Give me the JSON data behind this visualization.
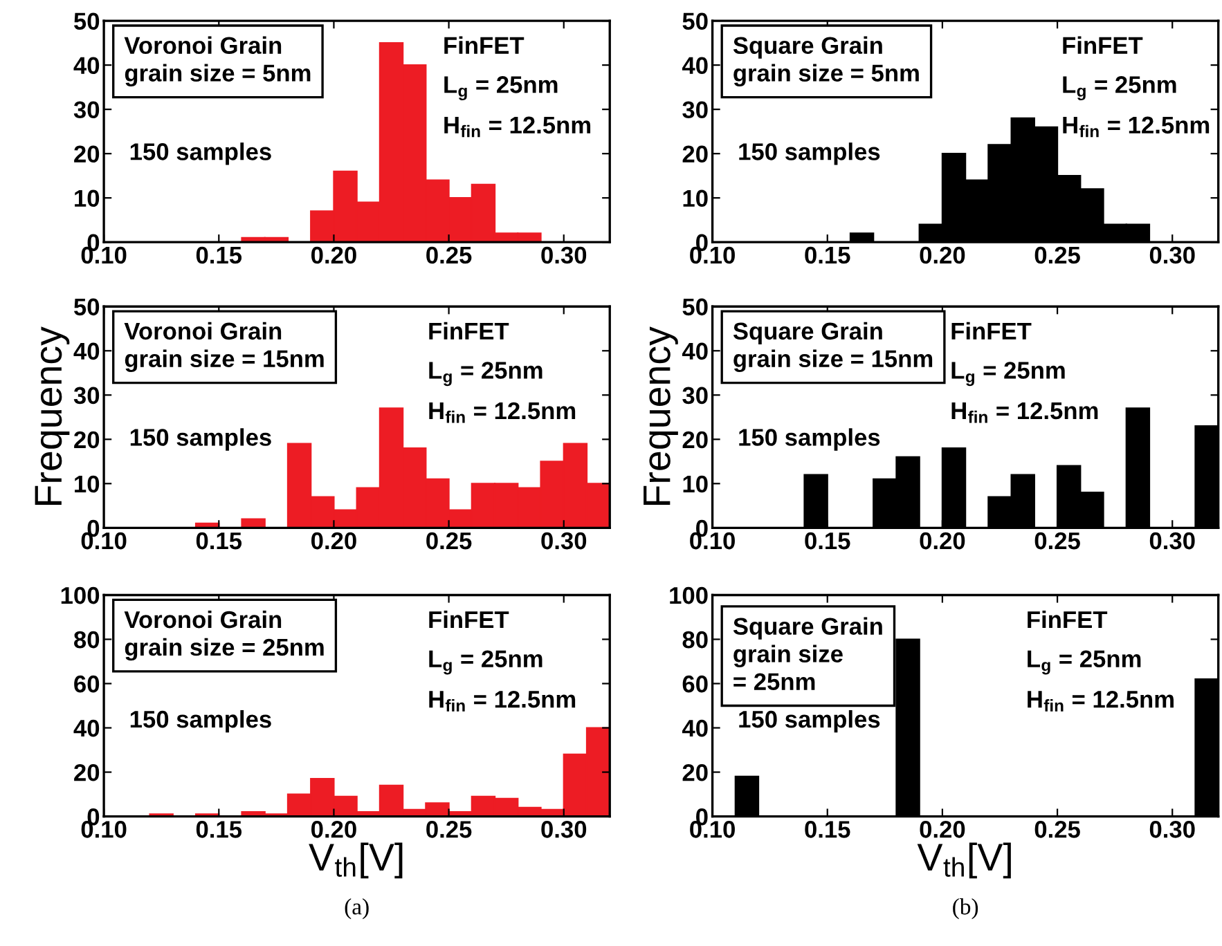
{
  "chart_data": [
    {
      "type": "histogram",
      "color": "#ed1c24",
      "bins": [
        0.1,
        0.11,
        0.12,
        0.13,
        0.14,
        0.15,
        0.16,
        0.17,
        0.18,
        0.19,
        0.2,
        0.21,
        0.22,
        0.23,
        0.24,
        0.25,
        0.26,
        0.27,
        0.28,
        0.29,
        0.3,
        0.31,
        0.32
      ],
      "values": [
        0,
        0,
        0,
        0,
        0,
        0,
        1,
        1,
        0,
        7,
        16,
        9,
        45,
        40,
        14,
        10,
        13,
        2,
        2,
        0,
        0,
        0
      ],
      "xlim": [
        0.1,
        0.32
      ],
      "xticks": [
        {
          "value": 0.1,
          "label": "0.10"
        },
        {
          "value": 0.15,
          "label": "0.15"
        },
        {
          "value": 0.2,
          "label": "0.20"
        },
        {
          "value": 0.25,
          "label": "0.25"
        },
        {
          "value": 0.3,
          "label": "0.30"
        }
      ],
      "ylim": [
        0,
        50
      ],
      "yticks": [
        0,
        10,
        20,
        30,
        40,
        50
      ],
      "annotations": [
        "Voronoi Grain\ngrain size = 5nm",
        "FinFET",
        "L$_{g}$ = 25nm",
        "H$_{fin}$ = 12.5nm",
        "150 samples"
      ]
    },
    {
      "type": "histogram",
      "color": "#000000",
      "bins": [
        0.1,
        0.11,
        0.12,
        0.13,
        0.14,
        0.15,
        0.16,
        0.17,
        0.18,
        0.19,
        0.2,
        0.21,
        0.22,
        0.23,
        0.24,
        0.25,
        0.26,
        0.27,
        0.28,
        0.29,
        0.3,
        0.31,
        0.32
      ],
      "values": [
        0,
        0,
        0,
        0,
        0,
        0,
        2,
        0,
        0,
        4,
        20,
        14,
        22,
        28,
        26,
        15,
        12,
        4,
        4,
        0,
        0,
        0
      ],
      "xlim": [
        0.1,
        0.32
      ],
      "xticks": [
        {
          "value": 0.1,
          "label": "0.10"
        },
        {
          "value": 0.15,
          "label": "0.15"
        },
        {
          "value": 0.2,
          "label": "0.20"
        },
        {
          "value": 0.25,
          "label": "0.25"
        },
        {
          "value": 0.3,
          "label": "0.30"
        }
      ],
      "ylim": [
        0,
        50
      ],
      "yticks": [
        0,
        10,
        20,
        30,
        40,
        50
      ],
      "annotations": [
        "Square Grain\ngrain size = 5nm",
        "FinFET",
        "L$_{g}$ = 25nm",
        "H$_{fin}$ = 12.5nm",
        "150 samples"
      ]
    },
    {
      "type": "histogram",
      "color": "#ed1c24",
      "bins": [
        0.1,
        0.11,
        0.12,
        0.13,
        0.14,
        0.15,
        0.16,
        0.17,
        0.18,
        0.19,
        0.2,
        0.21,
        0.22,
        0.23,
        0.24,
        0.25,
        0.26,
        0.27,
        0.28,
        0.29,
        0.3,
        0.31,
        0.32
      ],
      "values": [
        0,
        0,
        0,
        0,
        1,
        0,
        2,
        0,
        19,
        7,
        4,
        9,
        27,
        18,
        11,
        4,
        10,
        10,
        9,
        15,
        19,
        10
      ],
      "xlim": [
        0.1,
        0.32
      ],
      "xticks": [
        {
          "value": 0.1,
          "label": "0.10"
        },
        {
          "value": 0.15,
          "label": "0.15"
        },
        {
          "value": 0.2,
          "label": "0.20"
        },
        {
          "value": 0.25,
          "label": "0.25"
        },
        {
          "value": 0.3,
          "label": "0.30"
        }
      ],
      "ylim": [
        0,
        50
      ],
      "yticks": [
        0,
        10,
        20,
        30,
        40,
        50
      ],
      "ylabel": "Frequency",
      "annotations": [
        "Voronoi Grain\ngrain size = 15nm",
        "FinFET",
        "L$_{g}$ = 25nm",
        "H$_{fin}$ = 12.5nm",
        "150 samples"
      ]
    },
    {
      "type": "histogram",
      "color": "#000000",
      "bins": [
        0.1,
        0.11,
        0.12,
        0.13,
        0.14,
        0.15,
        0.16,
        0.17,
        0.18,
        0.19,
        0.2,
        0.21,
        0.22,
        0.23,
        0.24,
        0.25,
        0.26,
        0.27,
        0.28,
        0.29,
        0.3,
        0.31,
        0.32
      ],
      "values": [
        0,
        0,
        0,
        0,
        12,
        0,
        0,
        11,
        16,
        0,
        18,
        0,
        7,
        12,
        0,
        14,
        8,
        0,
        27,
        0,
        0,
        23
      ],
      "xlim": [
        0.1,
        0.32
      ],
      "xticks": [
        {
          "value": 0.1,
          "label": "0.10"
        },
        {
          "value": 0.15,
          "label": "0.15"
        },
        {
          "value": 0.2,
          "label": "0.20"
        },
        {
          "value": 0.25,
          "label": "0.25"
        },
        {
          "value": 0.3,
          "label": "0.30"
        }
      ],
      "ylim": [
        0,
        50
      ],
      "yticks": [
        0,
        10,
        20,
        30,
        40,
        50
      ],
      "ylabel": "Frequency",
      "annotations": [
        "Square Grain\ngrain size = 15nm",
        "FinFET",
        "L$_{g}$ = 25nm",
        "H$_{fin}$ = 12.5nm",
        "150 samples"
      ]
    },
    {
      "type": "histogram",
      "color": "#ed1c24",
      "bins": [
        0.1,
        0.11,
        0.12,
        0.13,
        0.14,
        0.15,
        0.16,
        0.17,
        0.18,
        0.19,
        0.2,
        0.21,
        0.22,
        0.23,
        0.24,
        0.25,
        0.26,
        0.27,
        0.28,
        0.29,
        0.3,
        0.31,
        0.32
      ],
      "values": [
        0,
        0,
        1,
        0,
        1,
        0,
        2,
        1,
        10,
        17,
        9,
        2,
        14,
        3,
        6,
        2,
        9,
        8,
        4,
        3,
        28,
        40
      ],
      "xlim": [
        0.1,
        0.32
      ],
      "xticks": [
        {
          "value": 0.1,
          "label": "0.10"
        },
        {
          "value": 0.15,
          "label": "0.15"
        },
        {
          "value": 0.2,
          "label": "0.20"
        },
        {
          "value": 0.25,
          "label": "0.25"
        },
        {
          "value": 0.3,
          "label": "0.30"
        }
      ],
      "ylim": [
        0,
        100
      ],
      "yticks": [
        0,
        20,
        40,
        60,
        80,
        100
      ],
      "xlabel": "V$_{th}$[V]",
      "annotations": [
        "Voronoi Grain\ngrain size = 25nm",
        "FinFET",
        "L$_{g}$ = 25nm",
        "H$_{fin}$ = 12.5nm",
        "150 samples",
        "(a)"
      ]
    },
    {
      "type": "histogram",
      "color": "#000000",
      "bins": [
        0.1,
        0.11,
        0.12,
        0.13,
        0.14,
        0.15,
        0.16,
        0.17,
        0.18,
        0.19,
        0.2,
        0.21,
        0.22,
        0.23,
        0.24,
        0.25,
        0.26,
        0.27,
        0.28,
        0.29,
        0.3,
        0.31,
        0.32
      ],
      "values": [
        0,
        18,
        0,
        0,
        0,
        0,
        0,
        0,
        80,
        0,
        0,
        0,
        0,
        0,
        0,
        0,
        0,
        0,
        0,
        0,
        0,
        62
      ],
      "xlim": [
        0.1,
        0.32
      ],
      "xticks": [
        {
          "value": 0.1,
          "label": "0.10"
        },
        {
          "value": 0.15,
          "label": "0.15"
        },
        {
          "value": 0.2,
          "label": "0.20"
        },
        {
          "value": 0.25,
          "label": "0.25"
        },
        {
          "value": 0.3,
          "label": "0.30"
        }
      ],
      "ylim": [
        0,
        100
      ],
      "yticks": [
        0,
        20,
        40,
        60,
        80,
        100
      ],
      "xlabel": "V$_{th}$[V]",
      "annotations": [
        "Square Grain\ngrain size\n= 25nm",
        "FinFET",
        "L$_{g}$ = 25nm",
        "H$_{fin}$ = 12.5nm",
        "150 samples",
        "(b)"
      ]
    }
  ]
}
